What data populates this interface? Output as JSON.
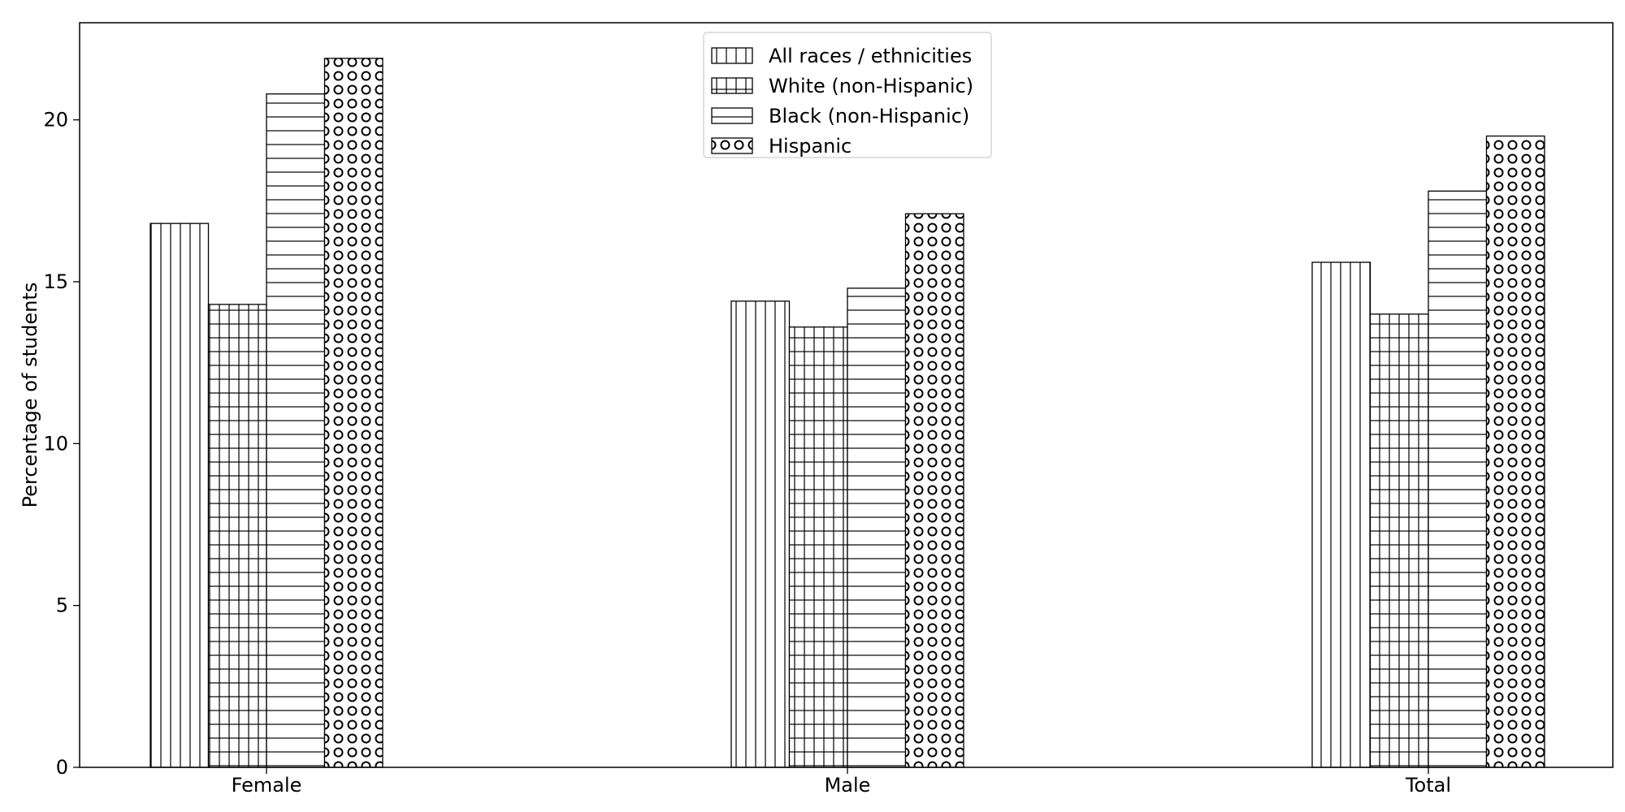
{
  "chart_data": {
    "type": "bar",
    "categories": [
      "Female",
      "Male",
      "Total"
    ],
    "series": [
      {
        "name": "All races / ethnicities",
        "values": [
          16.8,
          14.4,
          15.6
        ],
        "hatch": "vertical"
      },
      {
        "name": "White (non-Hispanic)",
        "values": [
          14.3,
          13.6,
          14.0
        ],
        "hatch": "grid"
      },
      {
        "name": "Black (non-Hispanic)",
        "values": [
          20.8,
          14.8,
          17.8
        ],
        "hatch": "horizontal"
      },
      {
        "name": "Hispanic",
        "values": [
          21.9,
          17.1,
          19.5
        ],
        "hatch": "circles"
      }
    ],
    "xlabel": "",
    "ylabel": "Percentage of students",
    "ylim": [
      0,
      23
    ],
    "yticks": [
      0,
      5,
      10,
      15,
      20
    ],
    "grid": false,
    "legend_position": "top-center",
    "colors": {
      "bar_fill": "#ffffff",
      "stroke": "#000000",
      "legend_border": "#cccccc"
    }
  }
}
